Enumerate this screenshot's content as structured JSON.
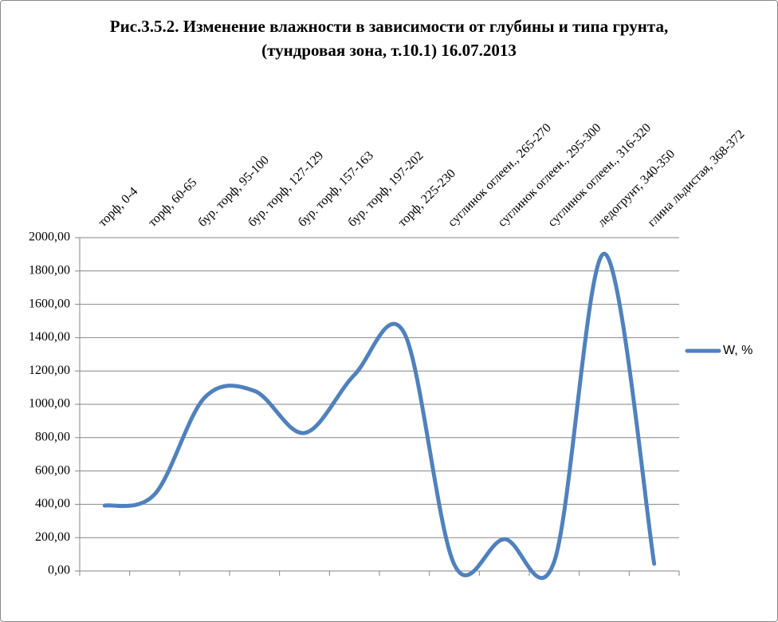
{
  "chart_data": {
    "type": "line",
    "title": "Рис.3.5.2. Изменение влажности в зависимости от глубины и типа грунта, (тундровая зона, т.10.1) 16.07.2013",
    "categories": [
      "торф, 0-4",
      "торф, 60-65",
      "бур. торф, 95-100",
      "бур. торф, 127-129",
      "бур. торф, 157-163",
      "бур. торф, 197-202",
      "торф, 225-230",
      "суглинок оглеен., 265-270",
      "суглинок оглеен., 295-300",
      "суглинок оглеен., 316-320",
      "ледогрунт, 340-350",
      "глина льдистая, 368-372"
    ],
    "series": [
      {
        "name": "W, %",
        "color": "#4f81bd",
        "values": [
          392,
          460,
          1040,
          1080,
          828,
          1177,
          1426,
          38,
          191,
          57,
          1904,
          43
        ]
      }
    ],
    "ylim": [
      0,
      2000
    ],
    "yticks": [
      {
        "value": 0,
        "label": "0,00"
      },
      {
        "value": 200,
        "label": "200,00"
      },
      {
        "value": 400,
        "label": "400,00"
      },
      {
        "value": 600,
        "label": "600,00"
      },
      {
        "value": 800,
        "label": "800,00"
      },
      {
        "value": 1000,
        "label": "1000,00"
      },
      {
        "value": 1200,
        "label": "1200,00"
      },
      {
        "value": 1400,
        "label": "1400,00"
      },
      {
        "value": 1600,
        "label": "1600,00"
      },
      {
        "value": 1800,
        "label": "1800,00"
      },
      {
        "value": 2000,
        "label": "2000,00"
      }
    ],
    "grid": true,
    "smooth": true,
    "legend": "right"
  }
}
